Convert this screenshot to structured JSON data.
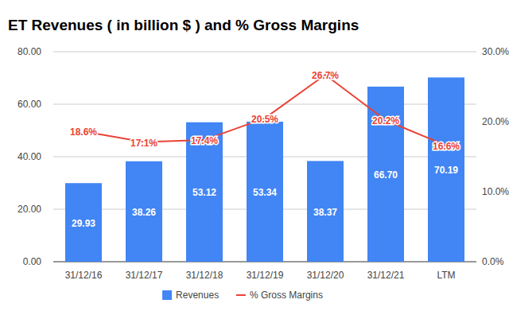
{
  "chart_data": {
    "type": "bar",
    "title": "ET Revenues ( in billion $ ) and % Gross Margins",
    "categories": [
      "31/12/16",
      "31/12/17",
      "31/12/18",
      "31/12/19",
      "31/12/20",
      "31/12/21",
      "LTM"
    ],
    "series": [
      {
        "name": "Revenues",
        "type": "bar",
        "color": "#4285f4",
        "values": [
          29.93,
          38.26,
          53.12,
          53.34,
          38.37,
          66.7,
          70.19
        ],
        "value_labels": [
          "29.93",
          "38.26",
          "53.12",
          "53.34",
          "38.37",
          "66.70",
          "70.19"
        ]
      },
      {
        "name": "% Gross Margins",
        "type": "line",
        "axis": "y2",
        "color": "#ea4335",
        "values": [
          18.6,
          17.1,
          17.4,
          20.5,
          26.7,
          20.2,
          16.6
        ],
        "value_labels": [
          "18.6%",
          "17.1%",
          "17.4%",
          "20.5%",
          "26.7%",
          "20.2%",
          "16.6%"
        ]
      }
    ],
    "ylim": [
      0,
      80
    ],
    "yticks": [
      {
        "value": 0,
        "label": "0.00"
      },
      {
        "value": 20,
        "label": "20.00"
      },
      {
        "value": 40,
        "label": "40.00"
      },
      {
        "value": 60,
        "label": "60.00"
      },
      {
        "value": 80,
        "label": "80.00"
      }
    ],
    "y2lim": [
      0,
      30
    ],
    "y2ticks": [
      {
        "value": 0,
        "label": "0.0%"
      },
      {
        "value": 10,
        "label": "10.0%"
      },
      {
        "value": 20,
        "label": "20.0%"
      },
      {
        "value": 30,
        "label": "30.0%"
      }
    ],
    "grid": true,
    "legend": "bottom",
    "data_labels": true
  }
}
